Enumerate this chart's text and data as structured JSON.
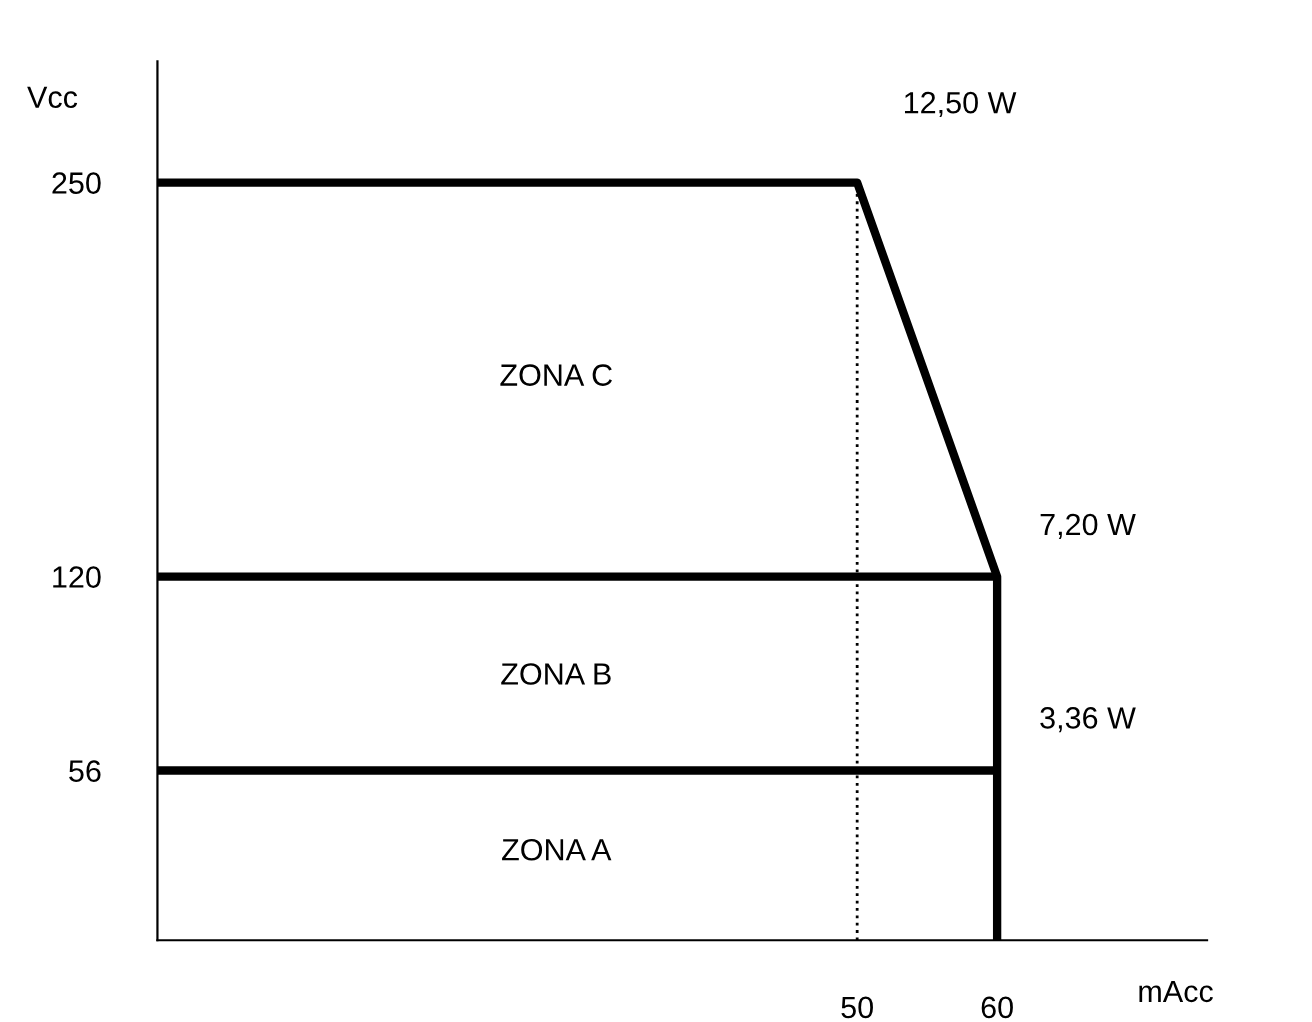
{
  "chart_data": {
    "type": "line",
    "xlabel": "mAcc",
    "ylabel": "Vcc",
    "xlim": [
      0,
      75
    ],
    "ylim": [
      0,
      290
    ],
    "xticks": [
      50,
      60
    ],
    "yticks": [
      56,
      120,
      250
    ],
    "grid": false,
    "legend": false,
    "marker": "none",
    "series": [
      {
        "color": "#000000",
        "x": [
          0,
          50,
          60,
          60
        ],
        "values": [
          250,
          250,
          120,
          0
        ]
      },
      {
        "color": "#000000",
        "x": [
          0,
          60
        ],
        "values": [
          120,
          120
        ]
      },
      {
        "color": "#000000",
        "x": [
          0,
          60
        ],
        "values": [
          56,
          56
        ]
      },
      {
        "color": "#000000",
        "x": [
          50,
          50
        ],
        "values": [
          0,
          250
        ],
        "line_style": "dotted"
      }
    ],
    "annotations": [
      "12,50 W",
      "7,20 W",
      "3,36 W",
      "ZONA C",
      "ZONA B",
      "ZONA A"
    ]
  }
}
